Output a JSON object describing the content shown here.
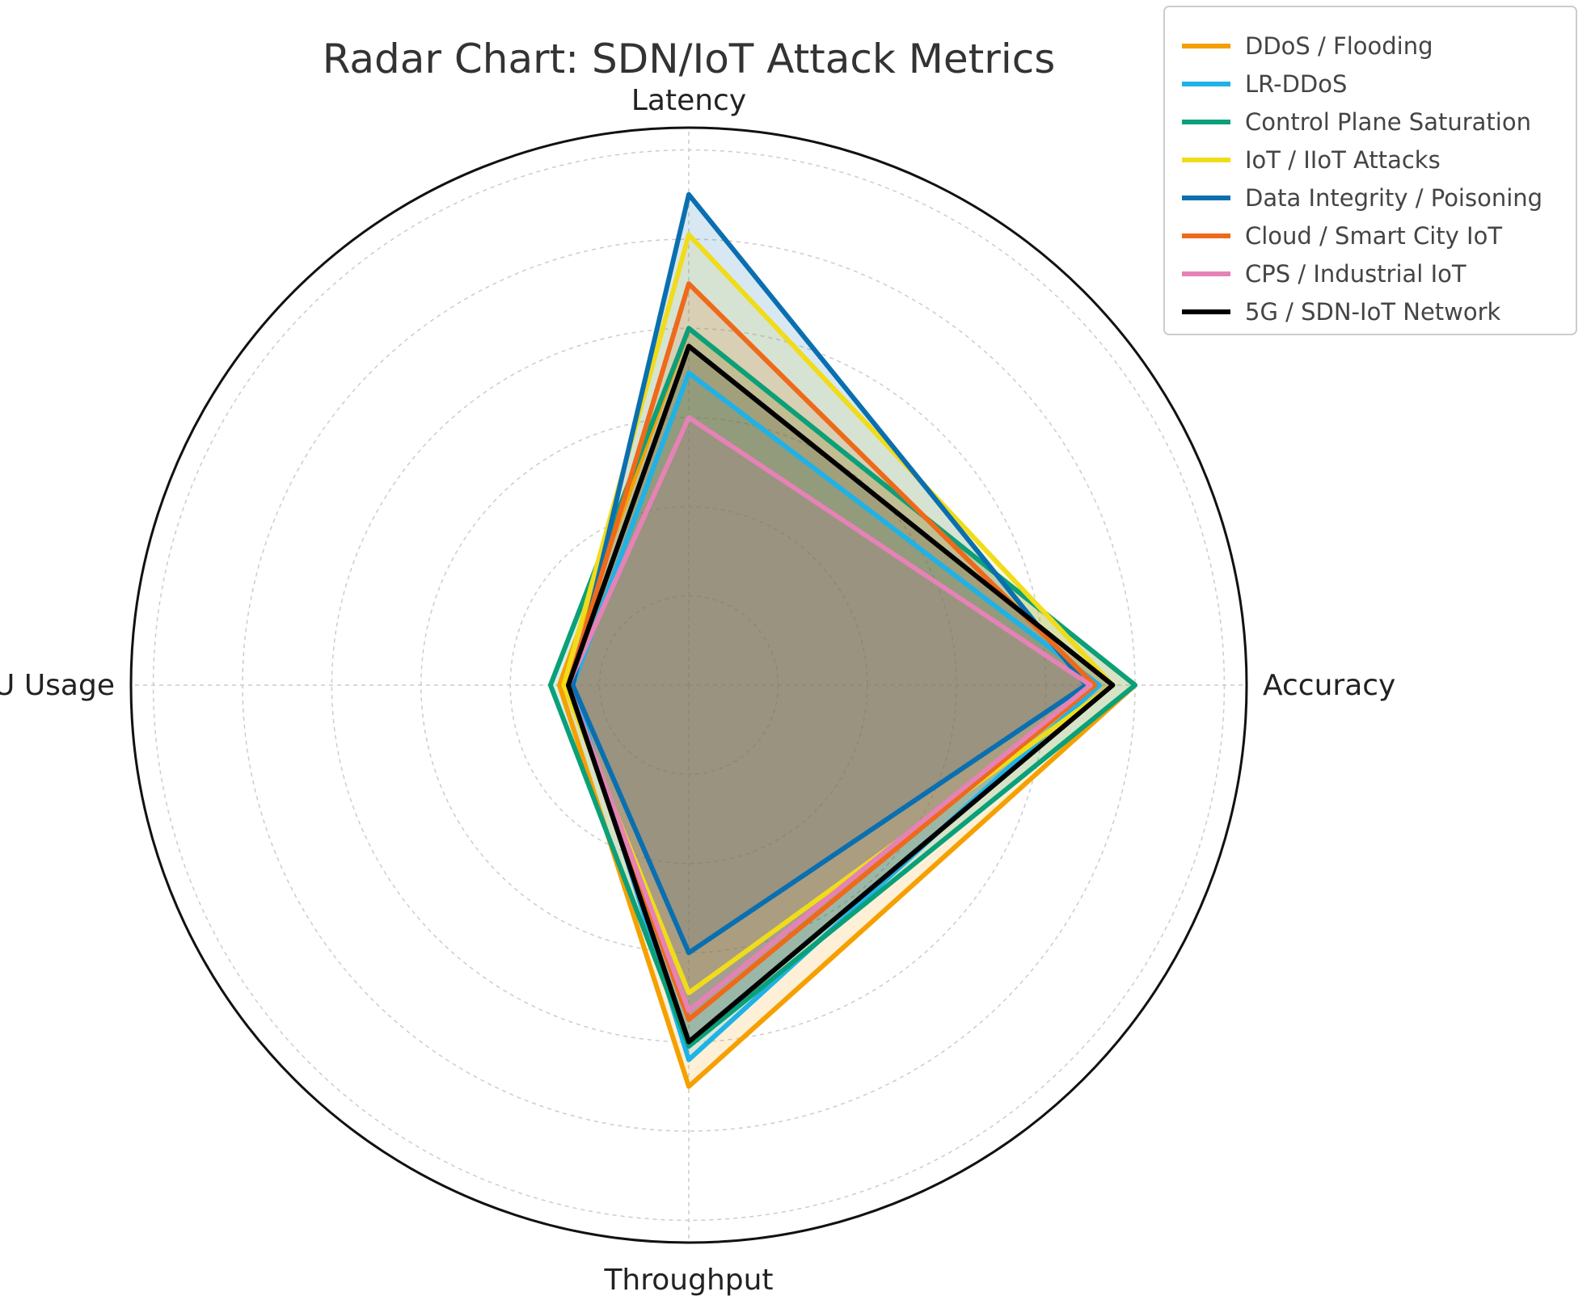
{
  "chart_data": {
    "type": "radar",
    "title": "Radar Chart: SDN/IoT Attack Metrics",
    "axes": [
      "Latency",
      "Accuracy",
      "Throughput",
      "CPU Usage"
    ],
    "rlim": [
      0,
      100
    ],
    "grid": true,
    "legend_position": "top-right",
    "series": [
      {
        "name": "DDoS / Flooding",
        "color": "#f5a000",
        "values": [
          80,
          100,
          90,
          29
        ]
      },
      {
        "name": "LR-DDoS",
        "color": "#1fb2e6",
        "values": [
          70,
          92,
          84,
          26
        ]
      },
      {
        "name": "Control Plane Saturation",
        "color": "#0aa07a",
        "values": [
          80,
          100,
          81,
          31
        ]
      },
      {
        "name": "IoT / IIoT Attacks",
        "color": "#f0dc1a",
        "values": [
          101,
          95,
          69,
          28
        ]
      },
      {
        "name": "Data Integrity / Poisoning",
        "color": "#0a6fb0",
        "values": [
          110,
          89,
          60,
          26
        ]
      },
      {
        "name": "Cloud / Smart City IoT",
        "color": "#ee6a1a",
        "values": [
          90,
          91,
          75,
          27
        ]
      },
      {
        "name": "CPS / Industrial IoT",
        "color": "#e582b6",
        "values": [
          60,
          90,
          73,
          27
        ]
      },
      {
        "name": "5G / SDN-IoT Network",
        "color": "#000000",
        "values": [
          76,
          95,
          80,
          27
        ]
      }
    ]
  }
}
